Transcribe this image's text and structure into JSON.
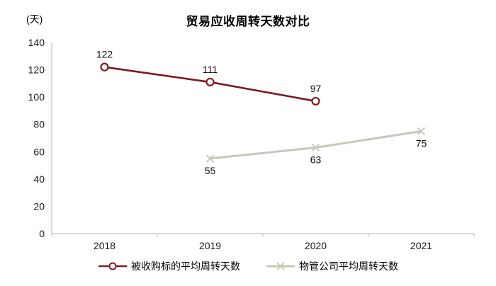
{
  "title": "贸易应收周转天数对比",
  "unit_label": "(天)",
  "chart_data": {
    "type": "line",
    "categories": [
      "2018",
      "2019",
      "2020",
      "2021"
    ],
    "series": [
      {
        "name": "被收购标的平均周转天数",
        "values": [
          122,
          111,
          97,
          null
        ],
        "color": "#7d1a1d",
        "marker": "circle",
        "label_position": "above"
      },
      {
        "name": "物管公司平均周转天数",
        "values": [
          null,
          55,
          63,
          75
        ],
        "color": "#c8c8b9",
        "marker": "x",
        "label_position": "below"
      }
    ],
    "ylim": [
      0,
      140
    ],
    "yticks": [
      0,
      20,
      40,
      60,
      80,
      100,
      120,
      140
    ],
    "grid": false,
    "legend_position": "bottom"
  },
  "colors": {
    "axis": "#bfbfbf",
    "tick_text": "#1a1a1a",
    "data_label_text": "#111111",
    "background": "#ffffff"
  }
}
